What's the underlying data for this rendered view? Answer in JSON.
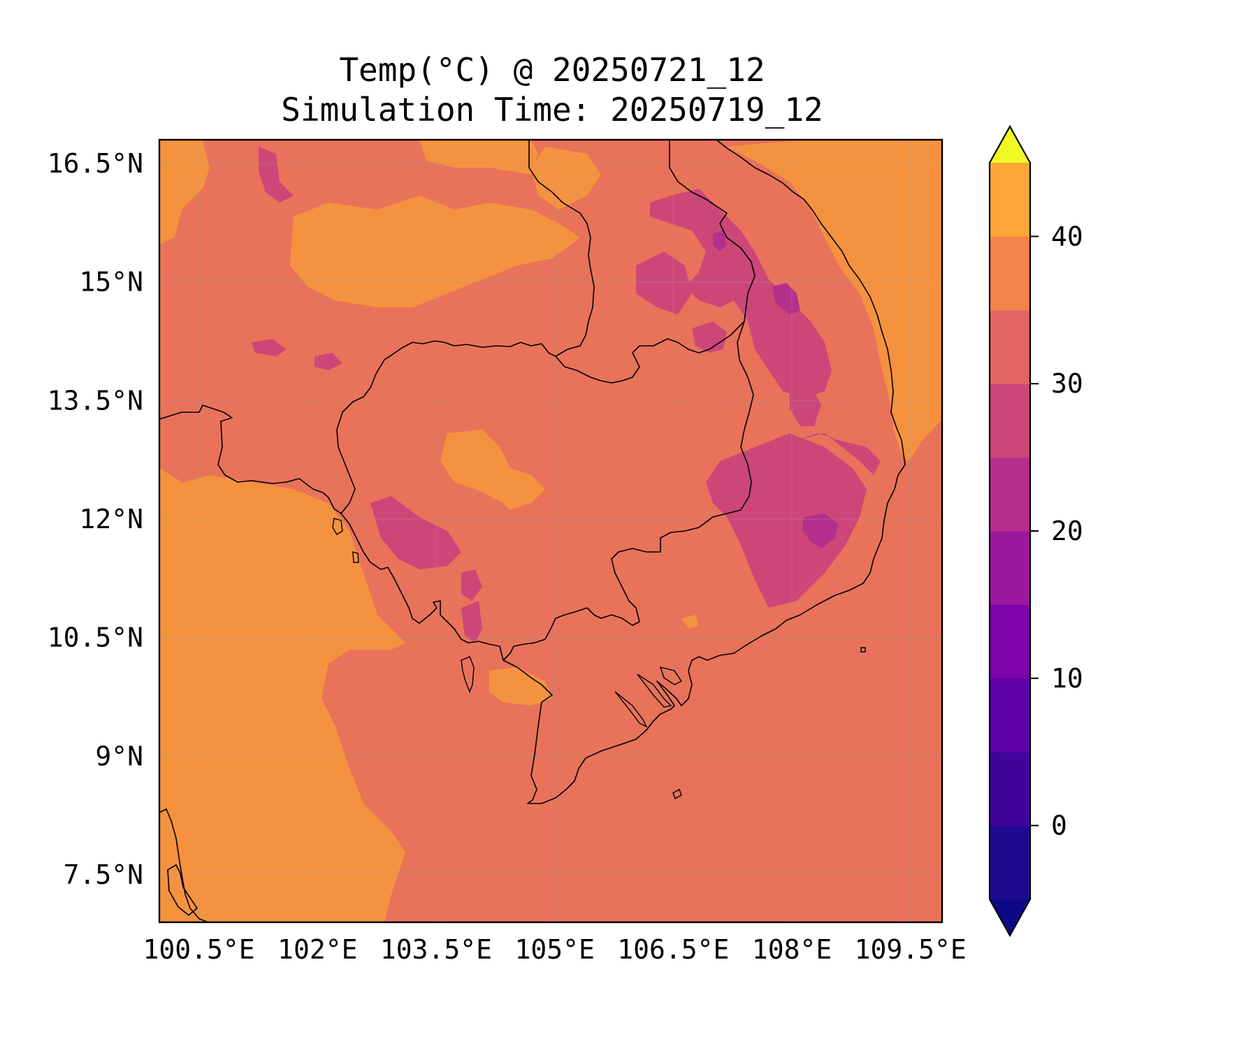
{
  "title": "Temp(°C) @ 20250721_12",
  "subtitle": "Simulation Time: 20250719_12",
  "map": {
    "lon_range": [
      100.0,
      109.9
    ],
    "lat_range": [
      6.9,
      16.8
    ],
    "lon_ticks": [
      {
        "value": 100.5,
        "label": "100.5°E"
      },
      {
        "value": 102.0,
        "label": "102°E"
      },
      {
        "value": 103.5,
        "label": "103.5°E"
      },
      {
        "value": 105.0,
        "label": "105°E"
      },
      {
        "value": 106.5,
        "label": "106.5°E"
      },
      {
        "value": 108.0,
        "label": "108°E"
      },
      {
        "value": 109.5,
        "label": "109.5°E"
      }
    ],
    "lat_ticks": [
      {
        "value": 7.5,
        "label": "7.5°N"
      },
      {
        "value": 9.0,
        "label": "9°N"
      },
      {
        "value": 10.5,
        "label": "10.5°N"
      },
      {
        "value": 12.0,
        "label": "12°N"
      },
      {
        "value": 13.5,
        "label": "13.5°N"
      },
      {
        "value": 15.0,
        "label": "15°N"
      },
      {
        "value": 16.5,
        "label": "16.5°N"
      }
    ],
    "gridlines": true
  },
  "colorbar": {
    "levels": [
      -5,
      0,
      5,
      10,
      15,
      20,
      25,
      30,
      35,
      40,
      45
    ],
    "colors": [
      "#1f0a8f",
      "#3e049c",
      "#5c01a6",
      "#7e03a8",
      "#9c179e",
      "#b52f8c",
      "#cc4778",
      "#e16462",
      "#f2844b",
      "#fca636",
      "#f2e42b"
    ],
    "under_color": "#0d0887",
    "over_color": "#f0f921",
    "ticks": [
      {
        "value": 0,
        "label": "0"
      },
      {
        "value": 10,
        "label": "10"
      },
      {
        "value": 20,
        "label": "20"
      },
      {
        "value": 30,
        "label": "30"
      },
      {
        "value": 40,
        "label": "40"
      }
    ],
    "extend": "both"
  },
  "field": {
    "background_level": "25-30",
    "colors": {
      "l20_25": "#cc4778",
      "l25_30": "#e8735a",
      "l30_35": "#f5923f",
      "l15_20": "#b52f8c"
    }
  }
}
